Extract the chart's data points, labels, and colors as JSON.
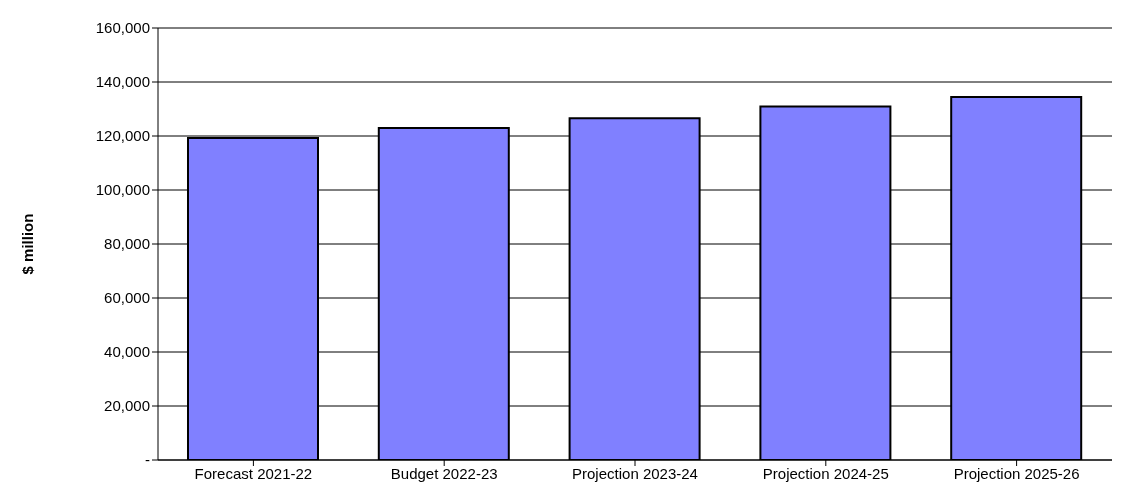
{
  "chart_data": {
    "type": "bar",
    "ylabel": "$ million",
    "categories": [
      "Forecast 2021-22",
      "Budget 2022-23",
      "Projection 2023-24",
      "Projection 2024-25",
      "Projection 2025-26"
    ],
    "values": [
      119300,
      123000,
      126600,
      130900,
      134400
    ],
    "color": "#8080ff",
    "ylim": [
      0,
      160000
    ],
    "yticks": [
      {
        "value": 0,
        "label": "-"
      },
      {
        "value": 20000,
        "label": "20,000"
      },
      {
        "value": 40000,
        "label": "40,000"
      },
      {
        "value": 60000,
        "label": "60,000"
      },
      {
        "value": 80000,
        "label": "80,000"
      },
      {
        "value": 100000,
        "label": "100,000"
      },
      {
        "value": 120000,
        "label": "120,000"
      },
      {
        "value": 140000,
        "label": "140,000"
      },
      {
        "value": 160000,
        "label": "160,000"
      }
    ],
    "grid": "y"
  }
}
